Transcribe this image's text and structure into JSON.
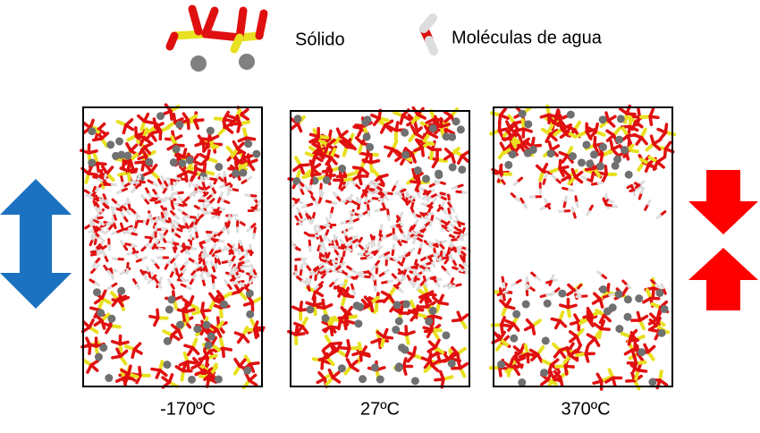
{
  "legend": {
    "solid": "Sólido",
    "water": "Moléculas de agua"
  },
  "panels": [
    {
      "label": "-170ºC"
    },
    {
      "label": "27ºC"
    },
    {
      "label": "370ºC"
    }
  ]
}
